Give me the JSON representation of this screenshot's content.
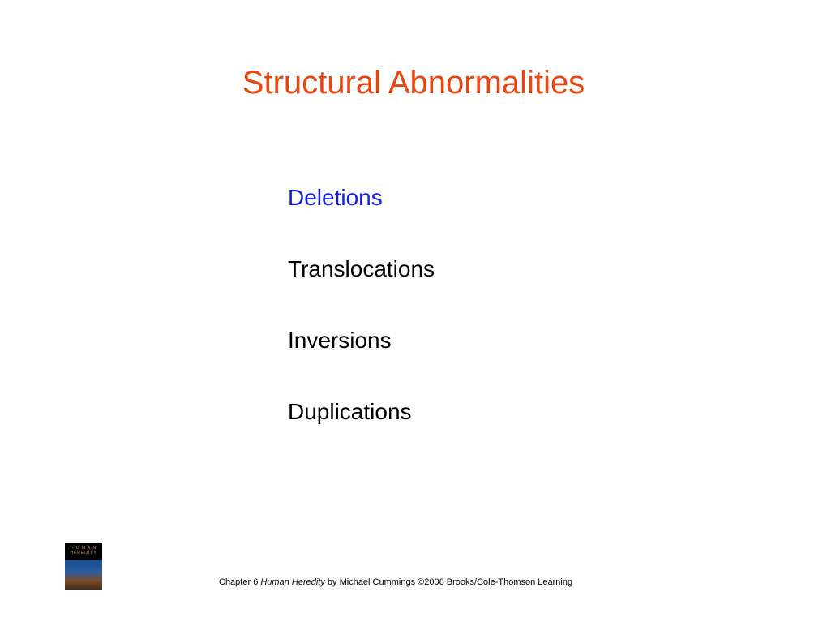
{
  "slide": {
    "title": "Structural Abnormalities",
    "title_color": "#e84610",
    "items": [
      {
        "text": "Deletions",
        "color": "#1020e0"
      },
      {
        "text": "Translocations",
        "color": "#000000"
      },
      {
        "text": "Inversions",
        "color": "#000000"
      },
      {
        "text": "Duplications",
        "color": "#000000"
      }
    ],
    "item_fontsize": 28,
    "title_fontsize": 40,
    "background_color": "#ffffff"
  },
  "footer": {
    "chapter": "Chapter 6  ",
    "book_title": "Human Heredity",
    "author_publisher": " by Michael Cummings ©2006 Brooks/Cole-Thomson Learning",
    "thumb_line1": "H U M A N",
    "thumb_line2": "HEREDITY"
  }
}
